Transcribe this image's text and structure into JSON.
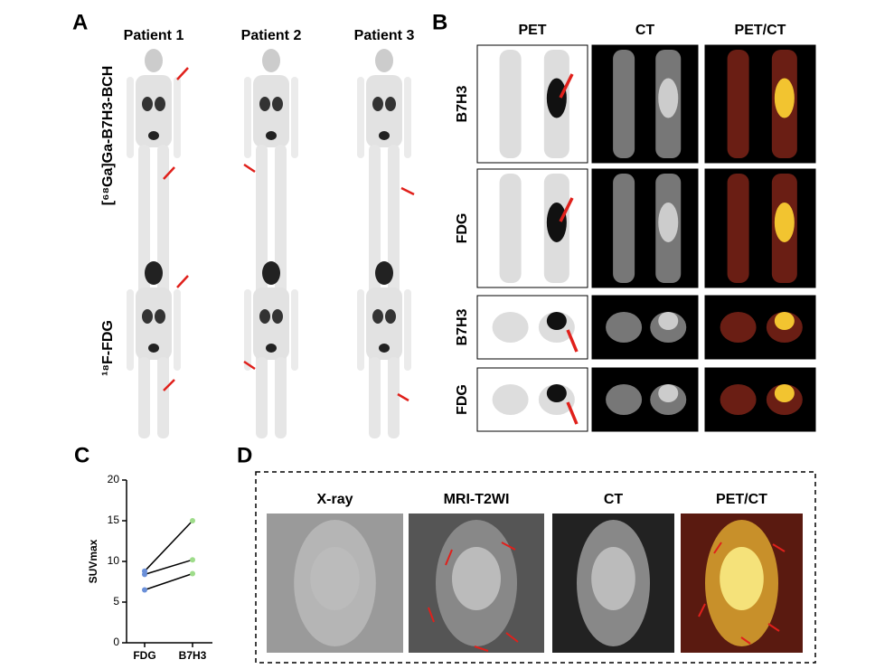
{
  "panel_a": {
    "label": "A",
    "columns": [
      "Patient 1",
      "Patient 2",
      "Patient 3"
    ],
    "rows": [
      "[⁶⁸Ga]Ga-B7H3-BCH",
      "¹⁸F-FDG"
    ]
  },
  "panel_b": {
    "label": "B",
    "columns": [
      "PET",
      "CT",
      "PET/CT"
    ],
    "rows": [
      "B7H3",
      "FDG",
      "B7H3",
      "FDG"
    ]
  },
  "panel_c": {
    "label": "C"
  },
  "panel_d": {
    "label": "D",
    "columns": [
      "X-ray",
      "MRI-T2WI",
      "CT",
      "PET/CT"
    ]
  },
  "chart_data": {
    "type": "line",
    "y_label": "SUVmax",
    "categories": [
      "FDG",
      "B7H3"
    ],
    "series": [
      {
        "values": [
          8.8,
          15
        ]
      },
      {
        "values": [
          8.4,
          10.2
        ]
      },
      {
        "values": [
          6.5,
          8.5
        ]
      }
    ],
    "line_color": "#000000",
    "marker_colors": [
      "#6a8fd8",
      "#9edc8a"
    ],
    "ylim": [
      0,
      20
    ],
    "yticks": [
      0,
      5,
      10,
      15,
      20
    ]
  }
}
